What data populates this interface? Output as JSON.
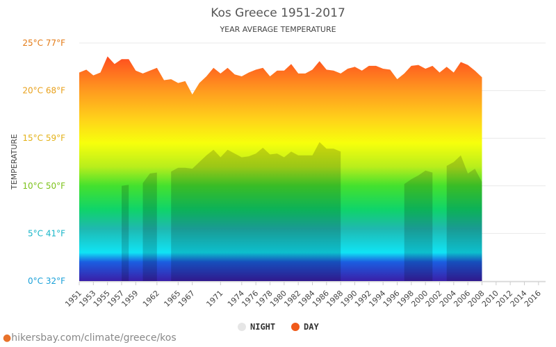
{
  "source_text": "hikersbay.com/climate/greece/kos",
  "colors": {
    "day_legend": "#f05a1a",
    "night_legend": "#e6e6e6",
    "grid": "#e8e8e8",
    "axis": "#cccccc"
  },
  "chart_data": {
    "type": "area",
    "title": "Kos Greece 1951-2017",
    "subtitle": "YEAR AVERAGE TEMPERATURE",
    "ylabel": "TEMPERATURE",
    "xlabel": "",
    "ylim": [
      0,
      25
    ],
    "xlim": [
      1951,
      2017
    ],
    "yticks": [
      {
        "value": 0,
        "label": "0°C 32°F",
        "color": "#1aa0d8"
      },
      {
        "value": 5,
        "label": "5°C 41°F",
        "color": "#17b6c8"
      },
      {
        "value": 10,
        "label": "10°C 50°F",
        "color": "#7cc21a"
      },
      {
        "value": 15,
        "label": "15°C 59°F",
        "color": "#e3b21a"
      },
      {
        "value": 20,
        "label": "20°C 68°F",
        "color": "#e8a11c"
      },
      {
        "value": 25,
        "label": "25°C 77°F",
        "color": "#e37a15"
      }
    ],
    "xticks": [
      1951,
      1953,
      1955,
      1957,
      1959,
      1962,
      1965,
      1967,
      1971,
      1974,
      1976,
      1978,
      1980,
      1982,
      1984,
      1986,
      1988,
      1990,
      1992,
      1994,
      1996,
      1998,
      2000,
      2002,
      2004,
      2006,
      2008,
      2010,
      2012,
      2014,
      2016
    ],
    "grid": true,
    "legend_position": "bottom",
    "series": [
      {
        "name": "DAY",
        "points": [
          [
            1951,
            21.9
          ],
          [
            1952,
            22.2
          ],
          [
            1953,
            21.6
          ],
          [
            1954,
            21.9
          ],
          [
            1955,
            23.6
          ],
          [
            1956,
            22.8
          ],
          [
            1957,
            23.3
          ],
          [
            1958,
            23.3
          ],
          [
            1959,
            22.1
          ],
          [
            1960,
            21.8
          ],
          [
            1961,
            22.1
          ],
          [
            1962,
            22.4
          ],
          [
            1963,
            21.1
          ],
          [
            1964,
            21.2
          ],
          [
            1965,
            20.8
          ],
          [
            1966,
            21.0
          ],
          [
            1967,
            19.6
          ],
          [
            1968,
            20.8
          ],
          [
            1969,
            21.5
          ],
          [
            1970,
            22.4
          ],
          [
            1971,
            21.8
          ],
          [
            1972,
            22.4
          ],
          [
            1973,
            21.7
          ],
          [
            1974,
            21.5
          ],
          [
            1975,
            21.9
          ],
          [
            1976,
            22.2
          ],
          [
            1977,
            22.4
          ],
          [
            1978,
            21.5
          ],
          [
            1979,
            22.1
          ],
          [
            1980,
            22.1
          ],
          [
            1981,
            22.8
          ],
          [
            1982,
            21.8
          ],
          [
            1983,
            21.8
          ],
          [
            1984,
            22.2
          ],
          [
            1985,
            23.1
          ],
          [
            1986,
            22.2
          ],
          [
            1987,
            22.1
          ],
          [
            1988,
            21.8
          ],
          [
            1989,
            22.3
          ],
          [
            1990,
            22.5
          ],
          [
            1991,
            22.1
          ],
          [
            1992,
            22.6
          ],
          [
            1993,
            22.6
          ],
          [
            1994,
            22.3
          ],
          [
            1995,
            22.2
          ],
          [
            1996,
            21.2
          ],
          [
            1997,
            21.8
          ],
          [
            1998,
            22.6
          ],
          [
            1999,
            22.7
          ],
          [
            2000,
            22.3
          ],
          [
            2001,
            22.6
          ],
          [
            2002,
            21.9
          ],
          [
            2003,
            22.5
          ],
          [
            2004,
            21.9
          ],
          [
            2005,
            23.0
          ],
          [
            2006,
            22.7
          ],
          [
            2007,
            22.1
          ],
          [
            2008,
            21.4
          ]
        ]
      },
      {
        "name": "NIGHT",
        "points": [
          [
            1957,
            10.0
          ],
          [
            1958,
            10.1
          ],
          [
            1958,
            0
          ],
          [
            1960,
            0
          ],
          [
            1960,
            10.3
          ],
          [
            1961,
            11.3
          ],
          [
            1962,
            11.4
          ],
          [
            1962,
            0
          ],
          [
            1964,
            0
          ],
          [
            1964,
            11.5
          ],
          [
            1965,
            11.9
          ],
          [
            1966,
            11.9
          ],
          [
            1967,
            11.8
          ],
          [
            1968,
            12.5
          ],
          [
            1969,
            13.2
          ],
          [
            1970,
            13.8
          ],
          [
            1971,
            13.0
          ],
          [
            1972,
            13.8
          ],
          [
            1973,
            13.4
          ],
          [
            1974,
            13.0
          ],
          [
            1975,
            13.1
          ],
          [
            1976,
            13.4
          ],
          [
            1977,
            14.0
          ],
          [
            1978,
            13.3
          ],
          [
            1979,
            13.4
          ],
          [
            1980,
            13.0
          ],
          [
            1981,
            13.6
          ],
          [
            1982,
            13.2
          ],
          [
            1983,
            13.2
          ],
          [
            1984,
            13.2
          ],
          [
            1985,
            14.6
          ],
          [
            1986,
            13.9
          ],
          [
            1987,
            13.9
          ],
          [
            1988,
            13.6
          ],
          [
            1988,
            0
          ],
          [
            1997,
            0
          ],
          [
            1997,
            10.2
          ],
          [
            1998,
            10.7
          ],
          [
            1999,
            11.1
          ],
          [
            2000,
            11.6
          ],
          [
            2001,
            11.4
          ],
          [
            2001,
            0
          ],
          [
            2003,
            0
          ],
          [
            2003,
            12.1
          ],
          [
            2004,
            12.5
          ],
          [
            2005,
            13.2
          ],
          [
            2006,
            11.3
          ],
          [
            2007,
            11.8
          ],
          [
            2008,
            10.4
          ]
        ]
      }
    ]
  }
}
